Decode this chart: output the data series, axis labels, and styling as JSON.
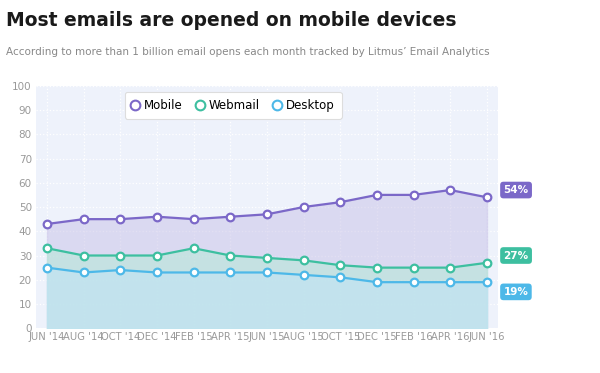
{
  "title": "Most emails are opened on mobile devices",
  "subtitle": "According to more than 1 billion email opens each month tracked by Litmus’ Email Analytics",
  "x_labels": [
    "JUN '14",
    "AUG '14",
    "OCT '14",
    "DEC '14",
    "FEB '15",
    "APR '15",
    "JUN '15",
    "AUG '15",
    "OCT '15",
    "DEC '15",
    "FEB '16",
    "APR '16",
    "JUN '16"
  ],
  "mobile": [
    43,
    45,
    45,
    46,
    45,
    46,
    47,
    50,
    52,
    55,
    55,
    57,
    54
  ],
  "webmail": [
    33,
    30,
    30,
    30,
    33,
    30,
    29,
    28,
    26,
    25,
    25,
    25,
    27
  ],
  "desktop": [
    25,
    23,
    24,
    23,
    23,
    23,
    23,
    22,
    21,
    19,
    19,
    19,
    19
  ],
  "mobile_color": "#7b68c8",
  "webmail_color": "#3dbfa0",
  "desktop_color": "#4db8e8",
  "mobile_fill": "#c8c2e8",
  "webmail_fill": "#b8e8d8",
  "desktop_fill": "#c0e4f5",
  "bg_color": "#eef2fb",
  "label_mobile": "54%",
  "label_webmail": "27%",
  "label_desktop": "19%",
  "label_mobile_bg": "#7b68c8",
  "label_webmail_bg": "#3dbfa0",
  "label_desktop_bg": "#4db8e8",
  "ylim": [
    0,
    100
  ],
  "yticks": [
    0,
    10,
    20,
    30,
    40,
    50,
    60,
    70,
    80,
    90,
    100
  ]
}
